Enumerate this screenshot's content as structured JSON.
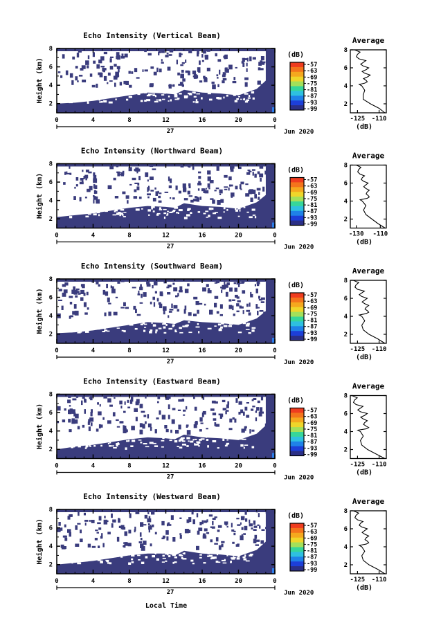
{
  "figure": {
    "x_axis_label": "Local Time",
    "date_label": "Jun 2020",
    "day_label": "27",
    "x_ticks": [
      "0",
      "4",
      "8",
      "12",
      "16",
      "20",
      "0"
    ],
    "y_ticks": [
      "2",
      "4",
      "6",
      "8"
    ],
    "y_axis_label": "Height (km)",
    "colorbar_unit": "(dB)",
    "colorbar_ticks": [
      "-57",
      "-63",
      "-69",
      "-75",
      "-81",
      "-87",
      "-93",
      "-99"
    ],
    "colorbar_colors": [
      "#ef3c1f",
      "#f4741c",
      "#f5a81e",
      "#efd62a",
      "#a3e05a",
      "#36d69a",
      "#2ec0e0",
      "#1f82e8",
      "#1d3fd8",
      "#2b2f86"
    ],
    "main_fill_color": "#3a3c7d",
    "profile_title": "Average",
    "profile_xlabel": "(dB)"
  },
  "chart_data": [
    {
      "type": "heatmap",
      "title": "Echo Intensity (Vertical Beam)",
      "ylabel": "Height (km)",
      "xlim": [
        0,
        24
      ],
      "ylim": [
        1,
        8
      ],
      "boundary": {
        "hours": [
          0,
          2,
          4,
          6,
          8,
          10,
          12,
          13,
          14,
          16,
          18,
          20,
          22,
          23,
          24
        ],
        "top_km": [
          2.0,
          2.1,
          2.3,
          2.6,
          2.9,
          3.2,
          3.1,
          3.0,
          3.5,
          3.2,
          3.1,
          2.9,
          3.6,
          4.5,
          8.0
        ]
      },
      "profile": {
        "title": "Average",
        "xlabel": "(dB)",
        "xticks": [
          "-125",
          "-110"
        ],
        "xlim": [
          -130,
          -105
        ],
        "heights_km": [
          1.0,
          1.5,
          2.0,
          2.5,
          3.0,
          3.5,
          4.0,
          4.3,
          4.6,
          5.0,
          5.4,
          5.8,
          6.2,
          6.6,
          7.0,
          7.5,
          8.0
        ],
        "values_db": [
          -106,
          -110,
          -116,
          -121,
          -121,
          -120,
          -122,
          -120,
          -119,
          -118,
          -120,
          -119,
          -121,
          -121,
          -124,
          -125,
          -127
        ]
      }
    },
    {
      "type": "heatmap",
      "title": "Echo Intensity (Northward Beam)",
      "ylabel": "Height (km)",
      "xlim": [
        0,
        24
      ],
      "ylim": [
        1,
        8
      ],
      "boundary": {
        "hours": [
          0,
          2,
          4,
          6,
          8,
          10,
          12,
          13,
          14,
          16,
          18,
          20,
          22,
          23,
          24
        ],
        "top_km": [
          2.2,
          2.4,
          2.6,
          2.9,
          3.2,
          3.4,
          3.3,
          3.2,
          3.7,
          3.4,
          3.3,
          3.1,
          3.8,
          4.6,
          8.0
        ]
      },
      "profile": {
        "title": "Average",
        "xlabel": "(dB)",
        "xticks": [
          "-130",
          "-110"
        ],
        "xlim": [
          -135,
          -105
        ],
        "heights_km": [
          1.0,
          1.5,
          2.0,
          2.5,
          3.0,
          3.5,
          4.0,
          4.3,
          4.6,
          5.0,
          5.4,
          5.8,
          6.2,
          6.6,
          7.0,
          7.5,
          8.0
        ],
        "values_db": [
          -106,
          -112,
          -117,
          -122,
          -124,
          -122,
          -125,
          -121,
          -120,
          -121,
          -122,
          -122,
          -124,
          -125,
          -127,
          -128,
          -130
        ]
      }
    },
    {
      "type": "heatmap",
      "title": "Echo Intensity (Southward Beam)",
      "ylabel": "Height (km)",
      "xlim": [
        0,
        24
      ],
      "ylim": [
        1,
        8
      ],
      "boundary": {
        "hours": [
          0,
          2,
          4,
          6,
          8,
          10,
          12,
          13,
          14,
          16,
          18,
          20,
          22,
          23,
          24
        ],
        "top_km": [
          2.1,
          2.2,
          2.4,
          2.7,
          3.0,
          3.3,
          3.2,
          3.1,
          3.5,
          3.3,
          3.2,
          3.0,
          3.7,
          4.5,
          8.0
        ]
      },
      "profile": {
        "title": "Average",
        "xlabel": "(dB)",
        "xticks": [
          "-125",
          "-110"
        ],
        "xlim": [
          -130,
          -105
        ],
        "heights_km": [
          1.0,
          1.5,
          2.0,
          2.5,
          3.0,
          3.5,
          4.0,
          4.3,
          4.6,
          5.0,
          5.4,
          5.8,
          6.2,
          6.6,
          7.0,
          7.5,
          8.0
        ],
        "values_db": [
          -106,
          -111,
          -117,
          -121,
          -122,
          -120,
          -122,
          -119,
          -118,
          -119,
          -120,
          -120,
          -122,
          -122,
          -125,
          -126,
          -128
        ]
      }
    },
    {
      "type": "heatmap",
      "title": "Echo Intensity (Eastward Beam)",
      "ylabel": "Height (km)",
      "xlim": [
        0,
        24
      ],
      "ylim": [
        1,
        8
      ],
      "boundary": {
        "hours": [
          0,
          2,
          4,
          6,
          8,
          10,
          12,
          13,
          14,
          16,
          18,
          20,
          22,
          23,
          24
        ],
        "top_km": [
          2.0,
          2.3,
          2.5,
          2.8,
          3.1,
          3.3,
          3.2,
          3.1,
          3.6,
          3.3,
          3.2,
          3.0,
          3.7,
          4.6,
          8.0
        ]
      },
      "profile": {
        "title": "Average",
        "xlabel": "(dB)",
        "xticks": [
          "-125",
          "-110"
        ],
        "xlim": [
          -130,
          -105
        ],
        "heights_km": [
          1.0,
          1.5,
          2.0,
          2.5,
          3.0,
          3.5,
          4.0,
          4.3,
          4.6,
          5.0,
          5.4,
          5.8,
          6.2,
          6.6,
          7.0,
          7.5,
          8.0
        ],
        "values_db": [
          -106,
          -112,
          -118,
          -122,
          -123,
          -121,
          -123,
          -119,
          -119,
          -120,
          -121,
          -120,
          -123,
          -123,
          -126,
          -127,
          -129
        ]
      }
    },
    {
      "type": "heatmap",
      "title": "Echo Intensity (Westward Beam)",
      "ylabel": "Height (km)",
      "xlim": [
        0,
        24
      ],
      "ylim": [
        1,
        8
      ],
      "boundary": {
        "hours": [
          0,
          2,
          4,
          6,
          8,
          10,
          12,
          13,
          14,
          16,
          18,
          20,
          22,
          23,
          24
        ],
        "top_km": [
          2.0,
          2.2,
          2.4,
          2.7,
          3.0,
          3.2,
          3.2,
          3.0,
          3.5,
          3.2,
          3.1,
          2.9,
          3.6,
          4.5,
          8.0
        ]
      },
      "profile": {
        "title": "Average",
        "xlabel": "(dB)",
        "xticks": [
          "-125",
          "-110"
        ],
        "xlim": [
          -130,
          -105
        ],
        "heights_km": [
          1.0,
          1.5,
          2.0,
          2.5,
          3.0,
          3.5,
          4.0,
          4.3,
          4.6,
          5.0,
          5.4,
          5.8,
          6.2,
          6.6,
          7.0,
          7.5,
          8.0
        ],
        "values_db": [
          -106,
          -111,
          -117,
          -121,
          -122,
          -120,
          -122,
          -119,
          -118,
          -119,
          -120,
          -120,
          -122,
          -123,
          -125,
          -126,
          -128
        ]
      }
    }
  ]
}
